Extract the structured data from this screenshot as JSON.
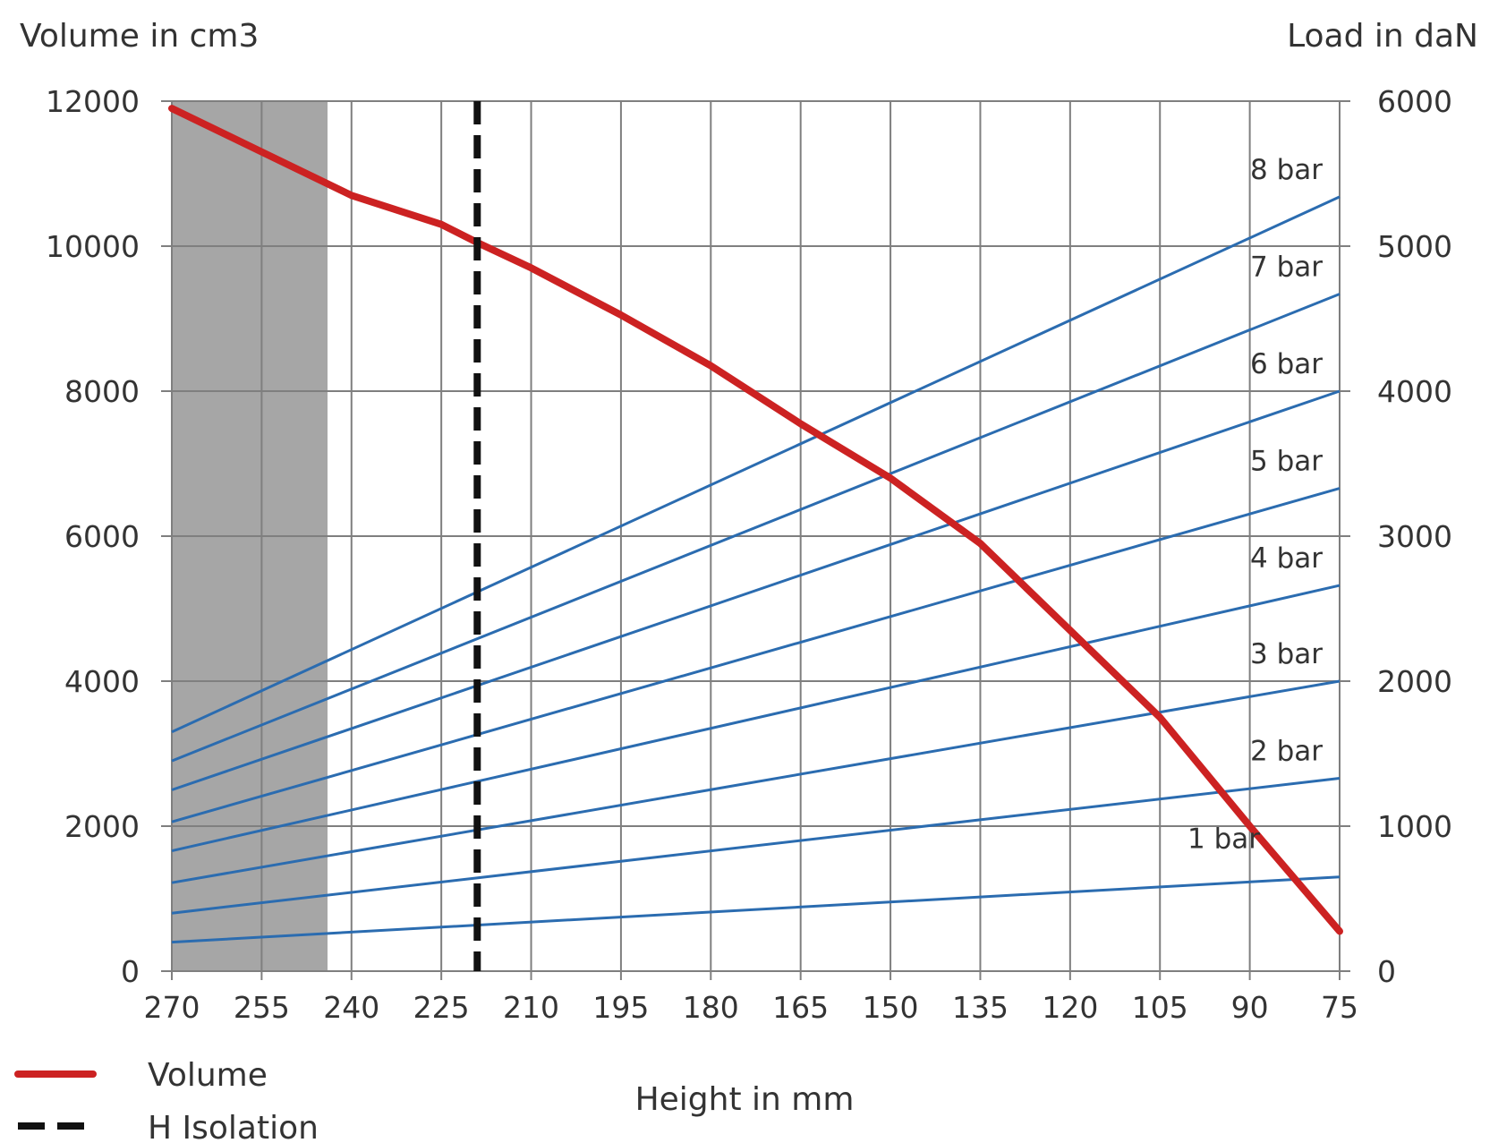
{
  "chart_data": {
    "type": "line",
    "xlabel": "Height in mm",
    "ylabel_left": "Volume in cm3",
    "ylabel_right": "Load in daN",
    "x_ticks": [
      270,
      255,
      240,
      225,
      210,
      195,
      180,
      165,
      150,
      135,
      120,
      105,
      90,
      75
    ],
    "x_range": [
      270,
      75
    ],
    "y_left_ticks": [
      0,
      2000,
      4000,
      6000,
      8000,
      10000,
      12000
    ],
    "y_left_range": [
      0,
      12000
    ],
    "y_right_ticks": [
      0,
      1000,
      2000,
      3000,
      4000,
      5000,
      6000
    ],
    "y_right_range": [
      0,
      6000
    ],
    "grid": true,
    "shaded_region": {
      "x_from": 270,
      "x_to": 244
    },
    "h_isolation_x": 219,
    "volume_series": {
      "name": "Volume",
      "color": "#cc2222",
      "x": [
        270,
        255,
        240,
        225,
        219,
        210,
        195,
        180,
        165,
        150,
        135,
        120,
        105,
        90,
        75
      ],
      "values": [
        11900,
        11300,
        10700,
        10300,
        10050,
        9700,
        9050,
        8350,
        7550,
        6800,
        5900,
        4700,
        3500,
        2000,
        550
      ]
    },
    "load_series_color": "#2b6cb0",
    "load_series": [
      {
        "name": "1 bar",
        "x": [
          270,
          75
        ],
        "values": [
          200,
          650
        ]
      },
      {
        "name": "2 bar",
        "x": [
          270,
          75
        ],
        "values": [
          400,
          1330
        ]
      },
      {
        "name": "3 bar",
        "x": [
          270,
          75
        ],
        "values": [
          610,
          2000
        ]
      },
      {
        "name": "4 bar",
        "x": [
          270,
          75
        ],
        "values": [
          830,
          2660
        ]
      },
      {
        "name": "5 bar",
        "x": [
          270,
          75
        ],
        "values": [
          1030,
          3330
        ]
      },
      {
        "name": "6 bar",
        "x": [
          270,
          75
        ],
        "values": [
          1250,
          4000
        ]
      },
      {
        "name": "7 bar",
        "x": [
          270,
          75
        ],
        "values": [
          1450,
          4670
        ]
      },
      {
        "name": "8 bar",
        "x": [
          270,
          75
        ],
        "values": [
          1650,
          5340
        ]
      }
    ],
    "legend": [
      {
        "label": "Volume",
        "style": "solid",
        "color": "#cc2222"
      },
      {
        "label": "H Isolation",
        "style": "dashed",
        "color": "#111111"
      }
    ]
  }
}
